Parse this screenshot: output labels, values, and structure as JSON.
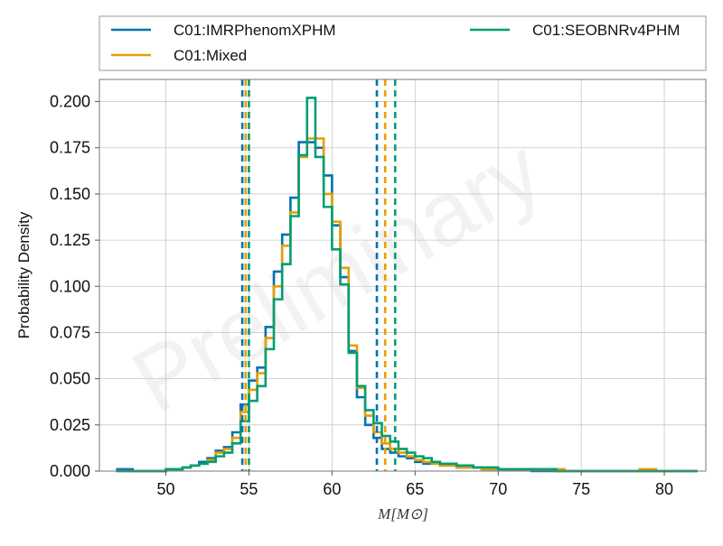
{
  "chart_data": {
    "type": "step",
    "title": "",
    "xlabel": "M[M⊙]",
    "ylabel": "Probability Density",
    "watermark": "Preliminary",
    "xlim": [
      46,
      82.5
    ],
    "ylim": [
      0,
      0.212
    ],
    "xticks": [
      50,
      55,
      60,
      65,
      70,
      75,
      80
    ],
    "yticks": [
      0.0,
      0.025,
      0.05,
      0.075,
      0.1,
      0.125,
      0.15,
      0.175,
      0.2
    ],
    "ytick_labels": [
      "0.000",
      "0.025",
      "0.050",
      "0.075",
      "0.100",
      "0.125",
      "0.150",
      "0.175",
      "0.200"
    ],
    "grid": true,
    "legend": {
      "placement": "top, above plot, 2 columns"
    },
    "series": [
      {
        "name": "C01:IMRPhenomXPHM",
        "color": "#0072b2",
        "bin_width": 0.5,
        "bins_start": 47,
        "values": [
          0.001,
          0.001,
          0.0,
          0.0,
          0.0,
          0.0,
          0.001,
          0.001,
          0.002,
          0.003,
          0.005,
          0.007,
          0.011,
          0.013,
          0.021,
          0.036,
          0.049,
          0.056,
          0.078,
          0.108,
          0.128,
          0.148,
          0.178,
          0.178,
          0.175,
          0.16,
          0.133,
          0.105,
          0.065,
          0.04,
          0.025,
          0.018,
          0.012,
          0.01,
          0.008,
          0.007,
          0.005,
          0.004,
          0.004,
          0.003,
          0.003,
          0.002,
          0.002,
          0.002,
          0.001,
          0.001,
          0.001,
          0.001,
          0.001,
          0.001,
          0.0,
          0.0,
          0.0,
          0.0,
          0.0,
          0.0,
          0.0,
          0.0,
          0.0,
          0.0,
          0.0,
          0.0,
          0.0,
          0.0,
          0.0,
          0.0,
          0.0,
          0.0,
          0.0,
          0.0
        ],
        "ci": [
          54.6,
          62.7
        ]
      },
      {
        "name": "C01:Mixed",
        "color": "#e69f00",
        "bin_width": 0.5,
        "bins_start": 47,
        "values": [
          0.0,
          0.0,
          0.0,
          0.0,
          0.0,
          0.0,
          0.001,
          0.001,
          0.002,
          0.003,
          0.004,
          0.006,
          0.01,
          0.012,
          0.018,
          0.032,
          0.044,
          0.053,
          0.072,
          0.1,
          0.122,
          0.14,
          0.17,
          0.18,
          0.18,
          0.15,
          0.135,
          0.11,
          0.068,
          0.045,
          0.03,
          0.021,
          0.015,
          0.012,
          0.01,
          0.008,
          0.006,
          0.005,
          0.004,
          0.003,
          0.003,
          0.002,
          0.002,
          0.002,
          0.001,
          0.001,
          0.001,
          0.001,
          0.001,
          0.001,
          0.001,
          0.001,
          0.001,
          0.001,
          0.0,
          0.0,
          0.0,
          0.0,
          0.0,
          0.0,
          0.0,
          0.0,
          0.0,
          0.001,
          0.001,
          0.0,
          0.0,
          0.0,
          0.0,
          0.0
        ],
        "ci": [
          54.8,
          63.2
        ]
      },
      {
        "name": "C01:SEOBNRv4PHM",
        "color": "#009e73",
        "bin_width": 0.5,
        "bins_start": 47,
        "values": [
          0.0,
          0.0,
          0.0,
          0.0,
          0.0,
          0.0,
          0.001,
          0.001,
          0.002,
          0.003,
          0.004,
          0.005,
          0.008,
          0.01,
          0.015,
          0.027,
          0.038,
          0.046,
          0.066,
          0.093,
          0.112,
          0.138,
          0.171,
          0.202,
          0.17,
          0.143,
          0.12,
          0.101,
          0.064,
          0.046,
          0.033,
          0.026,
          0.019,
          0.016,
          0.012,
          0.01,
          0.008,
          0.007,
          0.005,
          0.004,
          0.004,
          0.003,
          0.003,
          0.002,
          0.002,
          0.002,
          0.001,
          0.001,
          0.001,
          0.001,
          0.001,
          0.001,
          0.001,
          0.0,
          0.0,
          0.0,
          0.0,
          0.0,
          0.0,
          0.0,
          0.0,
          0.0,
          0.0,
          0.0,
          0.0,
          0.0,
          0.0,
          0.0,
          0.0,
          0.0
        ],
        "ci": [
          55.0,
          63.8
        ]
      }
    ]
  }
}
